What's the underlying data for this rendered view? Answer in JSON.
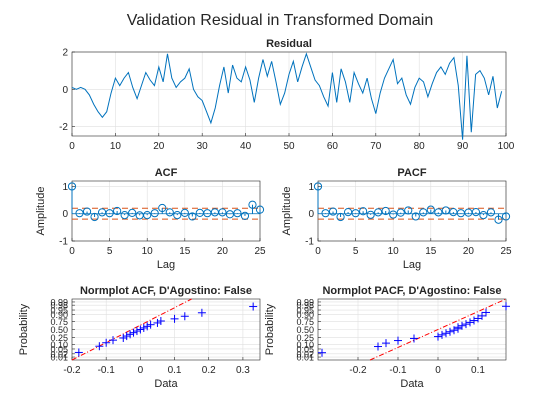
{
  "figure": {
    "title": "Validation Residual in Transformed Domain",
    "colors": {
      "line": "#0072BD",
      "marker_blue": "#0000FF",
      "bound_red": "#D95319",
      "ref_red": "#FF0000",
      "axis": "#262626",
      "grid": "#DFDFDF"
    }
  },
  "chart_data": [
    {
      "id": "residual",
      "type": "line",
      "title": "Residual",
      "xlabel": "",
      "ylabel": "",
      "xlim": [
        0,
        100
      ],
      "ylim": [
        -2.5,
        2
      ],
      "xticks": [
        0,
        10,
        20,
        30,
        40,
        50,
        60,
        70,
        80,
        90,
        100
      ],
      "yticks": [
        -2,
        0,
        2
      ],
      "grid": true,
      "x_start": 0,
      "values": [
        0.1,
        0.0,
        0.1,
        0.0,
        -0.3,
        -0.8,
        -1.2,
        -1.5,
        -1.2,
        -0.2,
        0.6,
        0.2,
        0.6,
        0.9,
        0.1,
        -0.5,
        0.2,
        0.9,
        0.5,
        0.2,
        1.2,
        0.4,
        1.9,
        0.6,
        0.1,
        0.4,
        0.6,
        1.1,
        0.0,
        -0.4,
        -0.6,
        -1.2,
        -1.8,
        -1.0,
        0.2,
        1.2,
        -0.2,
        1.3,
        0.6,
        0.4,
        1.2,
        0.5,
        -0.7,
        0.6,
        1.6,
        0.7,
        1.5,
        0.4,
        -0.8,
        -0.2,
        0.8,
        1.5,
        0.4,
        1.2,
        1.9,
        1.2,
        0.5,
        0.2,
        -0.4,
        -0.9,
        0.9,
        -0.7,
        1.1,
        0.4,
        -0.7,
        0.9,
        0.3,
        -0.2,
        0.6,
        -0.5,
        -1.3,
        -0.2,
        0.6,
        1.1,
        1.6,
        0.3,
        0.6,
        -0.3,
        -0.8,
        0.1,
        0.6,
        0.4,
        -0.4,
        0.3,
        0.9,
        1.2,
        0.8,
        1.4,
        1.7,
        0.2,
        -2.7,
        1.8,
        -2.3,
        0.8,
        1.0,
        0.6,
        -0.3,
        0.7,
        -1.0,
        -0.1
      ]
    },
    {
      "id": "acf",
      "type": "stem",
      "title": "ACF",
      "xlabel": "Lag",
      "ylabel": "Amplitude",
      "xlim": [
        0,
        25
      ],
      "ylim": [
        -1,
        1.2
      ],
      "xticks": [
        0,
        5,
        10,
        15,
        20,
        25
      ],
      "yticks": [
        -1,
        0,
        1
      ],
      "grid": true,
      "bounds": [
        0.2,
        -0.2
      ],
      "lags": [
        0,
        1,
        2,
        3,
        4,
        5,
        6,
        7,
        8,
        9,
        10,
        11,
        12,
        13,
        14,
        15,
        16,
        17,
        18,
        19,
        20,
        21,
        22,
        23,
        24,
        25
      ],
      "values": [
        1.0,
        0.02,
        0.08,
        -0.12,
        0.05,
        0.02,
        0.1,
        -0.05,
        0.03,
        -0.06,
        -0.05,
        0.02,
        0.21,
        0.05,
        -0.05,
        0.03,
        -0.1,
        0.03,
        0.02,
        0.05,
        0.05,
        -0.02,
        0.02,
        -0.08,
        0.33,
        0.15
      ]
    },
    {
      "id": "pacf",
      "type": "stem",
      "title": "PACF",
      "xlabel": "Lag",
      "ylabel": "Amplitude",
      "xlim": [
        0,
        25
      ],
      "ylim": [
        -1,
        1.2
      ],
      "xticks": [
        0,
        5,
        10,
        15,
        20,
        25
      ],
      "yticks": [
        -1,
        0,
        1
      ],
      "grid": true,
      "bounds": [
        0.2,
        -0.2
      ],
      "lags": [
        0,
        1,
        2,
        3,
        4,
        5,
        6,
        7,
        8,
        9,
        10,
        11,
        12,
        13,
        14,
        15,
        16,
        17,
        18,
        19,
        20,
        21,
        22,
        23,
        24,
        25
      ],
      "values": [
        1.0,
        0.02,
        0.08,
        -0.12,
        0.06,
        0.02,
        0.09,
        -0.04,
        0.05,
        0.1,
        -0.03,
        0.04,
        0.12,
        -0.1,
        0.05,
        0.15,
        0.05,
        0.12,
        0.06,
        0.02,
        0.04,
        0.06,
        -0.05,
        0.05,
        -0.22,
        -0.1
      ]
    },
    {
      "id": "normplot_acf",
      "type": "scatter",
      "title": "Normplot ACF, D'Agostino: False",
      "xlabel": "Data",
      "ylabel": "Probability",
      "xlim": [
        -0.2,
        0.35
      ],
      "xticks": [
        -0.2,
        -0.1,
        0,
        0.1,
        0.2,
        0.3
      ],
      "xtick_labels": [
        "-0.2",
        "-0.1",
        "0",
        "0.1",
        "0.2",
        "0.3"
      ],
      "prob_ticks": [
        0.01,
        0.02,
        0.05,
        0.1,
        0.25,
        0.5,
        0.75,
        0.9,
        0.95,
        0.98,
        0.99
      ],
      "prob_tick_labels": [
        "0.01",
        "0.02",
        "0.05",
        "0.10",
        "0.25",
        "0.50",
        "0.75",
        "0.90",
        "0.95",
        "0.98",
        "0.99"
      ],
      "grid": true,
      "data": [
        -0.18,
        -0.12,
        -0.1,
        -0.08,
        -0.05,
        -0.04,
        -0.03,
        -0.02,
        -0.01,
        0.0,
        0.01,
        0.02,
        0.03,
        0.05,
        0.06,
        0.1,
        0.13,
        0.18,
        0.33
      ],
      "reference_line": [
        [
          -0.2,
          0.005
        ],
        [
          0.15,
          0.995
        ]
      ]
    },
    {
      "id": "normplot_pacf",
      "type": "scatter",
      "title": "Normplot PACF, D'Agostino: False",
      "xlabel": "Data",
      "ylabel": "Probability",
      "xlim": [
        -0.3,
        0.17
      ],
      "xticks": [
        -0.2,
        -0.1,
        0,
        0.1
      ],
      "xtick_labels": [
        "-0.2",
        "-0.1",
        "0",
        "0.1"
      ],
      "prob_ticks": [
        0.01,
        0.02,
        0.05,
        0.1,
        0.25,
        0.5,
        0.75,
        0.9,
        0.95,
        0.98,
        0.99
      ],
      "prob_tick_labels": [
        "0.01",
        "0.02",
        "0.05",
        "0.10",
        "0.25",
        "0.50",
        "0.75",
        "0.90",
        "0.95",
        "0.98",
        "0.99"
      ],
      "grid": true,
      "data": [
        -0.29,
        -0.15,
        -0.13,
        -0.1,
        -0.06,
        0.0,
        0.01,
        0.02,
        0.03,
        0.04,
        0.05,
        0.05,
        0.06,
        0.07,
        0.08,
        0.09,
        0.1,
        0.11,
        0.12,
        0.17
      ],
      "reference_line": [
        [
          -0.17,
          0.005
        ],
        [
          0.17,
          0.995
        ]
      ]
    }
  ]
}
